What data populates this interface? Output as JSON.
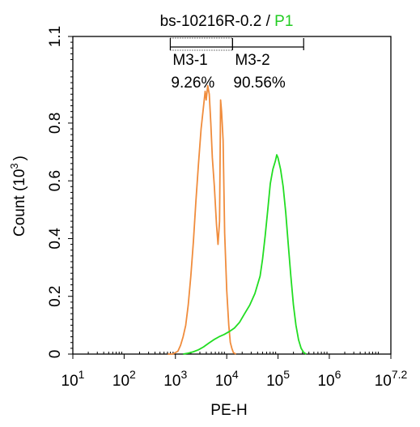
{
  "chart_data": {
    "type": "line",
    "title": {
      "sample": "bs-10216R-0.2",
      "separator": " / ",
      "gate": "P1",
      "gate_color": "#22cc22"
    },
    "xlabel": "PE-H",
    "ylabel": {
      "text": "Count",
      "unit": "(10",
      "exp": "3",
      "close": ")"
    },
    "x_scale": "log",
    "xlim": [
      10,
      15848932
    ],
    "ylim": [
      0,
      1.1
    ],
    "x_ticks": [
      {
        "base": "10",
        "exp": "1",
        "value": 10
      },
      {
        "base": "10",
        "exp": "2",
        "value": 100
      },
      {
        "base": "10",
        "exp": "3",
        "value": 1000
      },
      {
        "base": "10",
        "exp": "4",
        "value": 10000
      },
      {
        "base": "10",
        "exp": "5",
        "value": 100000
      },
      {
        "base": "10",
        "exp": "6",
        "value": 1000000
      },
      {
        "base": "10",
        "exp": "7.2",
        "value": 15848932
      }
    ],
    "y_ticks": [
      {
        "label": "0",
        "value": 0
      },
      {
        "label": "0.2",
        "value": 0.2
      },
      {
        "label": "0.4",
        "value": 0.4
      },
      {
        "label": "0.6",
        "value": 0.6
      },
      {
        "label": "0.8",
        "value": 0.8
      },
      {
        "label": "1.1",
        "value": 1.1
      }
    ],
    "gates": [
      {
        "name": "M3-1",
        "percent": "9.26%",
        "range": [
          794,
          13000
        ],
        "style": "dotted-top"
      },
      {
        "name": "M3-2",
        "percent": "90.56%",
        "range": [
          13000,
          316228
        ],
        "style": "solid"
      }
    ],
    "series": [
      {
        "color": "#f08c3c",
        "points": [
          [
            708,
            0
          ],
          [
            891,
            0
          ],
          [
            1122,
            0.01
          ],
          [
            1259,
            0.03
          ],
          [
            1413,
            0.06
          ],
          [
            1585,
            0.1
          ],
          [
            1778,
            0.17
          ],
          [
            1995,
            0.27
          ],
          [
            2239,
            0.39
          ],
          [
            2512,
            0.53
          ],
          [
            2818,
            0.66
          ],
          [
            3162,
            0.78
          ],
          [
            3548,
            0.86
          ],
          [
            3802,
            0.91
          ],
          [
            3981,
            0.88
          ],
          [
            4266,
            0.93
          ],
          [
            4571,
            0.9
          ],
          [
            4898,
            0.8
          ],
          [
            5248,
            0.68
          ],
          [
            5754,
            0.58
          ],
          [
            6310,
            0.45
          ],
          [
            6761,
            0.38
          ],
          [
            7244,
            0.46
          ],
          [
            7586,
            0.88
          ],
          [
            7943,
            0.84
          ],
          [
            8511,
            0.74
          ],
          [
            9120,
            0.42
          ],
          [
            10000,
            0.22
          ],
          [
            10965,
            0.1
          ],
          [
            11749,
            0.04
          ],
          [
            12589,
            0.02
          ],
          [
            13490,
            0.005
          ],
          [
            15136,
            0
          ]
        ]
      },
      {
        "color": "#22dd22",
        "points": [
          [
            1413,
            0
          ],
          [
            1778,
            0.003
          ],
          [
            2239,
            0.008
          ],
          [
            2818,
            0.015
          ],
          [
            3548,
            0.025
          ],
          [
            4467,
            0.038
          ],
          [
            5623,
            0.05
          ],
          [
            7079,
            0.06
          ],
          [
            8913,
            0.068
          ],
          [
            11220,
            0.078
          ],
          [
            14125,
            0.09
          ],
          [
            17783,
            0.11
          ],
          [
            22387,
            0.14
          ],
          [
            28184,
            0.17
          ],
          [
            35481,
            0.21
          ],
          [
            44668,
            0.27
          ],
          [
            50119,
            0.33
          ],
          [
            56234,
            0.41
          ],
          [
            63096,
            0.5
          ],
          [
            70795,
            0.59
          ],
          [
            79433,
            0.64
          ],
          [
            89125,
            0.67
          ],
          [
            94406,
            0.69
          ],
          [
            100000,
            0.68
          ],
          [
            112202,
            0.64
          ],
          [
            125893,
            0.58
          ],
          [
            141254,
            0.49
          ],
          [
            158489,
            0.38
          ],
          [
            177828,
            0.27
          ],
          [
            199526,
            0.17
          ],
          [
            223872,
            0.1
          ],
          [
            251189,
            0.05
          ],
          [
            281838,
            0.02
          ],
          [
            316228,
            0.006
          ],
          [
            354813,
            0
          ]
        ]
      }
    ]
  }
}
